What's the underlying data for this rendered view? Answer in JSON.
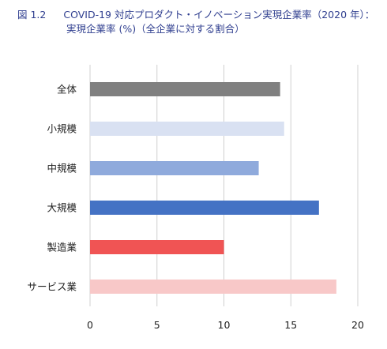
{
  "figure": {
    "number": "図 1.2",
    "title_line1": "COVID-19 対応プロダクト・イノベーション実現企業率（2020 年）：",
    "title_line2": "実現企業率 (%)（全企業に対する割合）"
  },
  "chart_data": {
    "type": "bar",
    "orientation": "horizontal",
    "categories": [
      "全体",
      "小規模",
      "中規模",
      "大規模",
      "製造業",
      "サービス業"
    ],
    "values": [
      14.2,
      14.5,
      12.6,
      17.1,
      10.0,
      18.4
    ],
    "colors": [
      "#808080",
      "#d9e1f2",
      "#8faadc",
      "#4472c4",
      "#f05454",
      "#f8c8c8"
    ],
    "xlim": [
      0,
      20
    ],
    "xticks": [
      0,
      5,
      10,
      15,
      20
    ],
    "grid": true
  }
}
